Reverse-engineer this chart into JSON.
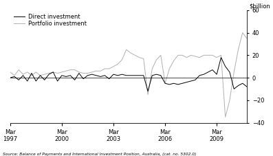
{
  "title": "",
  "ylabel": "$billion",
  "source_text": "Source: Balance of Payments and International Investment Position, Australia, (cat. no. 5302.0)",
  "ylim": [
    -40,
    60
  ],
  "yticks": [
    -40,
    -20,
    0,
    20,
    40,
    60
  ],
  "legend": [
    "Direct investment",
    "Portfolio investment"
  ],
  "line_colors": [
    "#000000",
    "#b0b0b0"
  ],
  "background_color": "#ffffff",
  "x_tick_positions": [
    0,
    12,
    24,
    36,
    48
  ],
  "x_tick_labels": [
    "Mar\n1997",
    "Mar\n2000",
    "Mar\n2003",
    "Mar\n2006",
    "Mar\n2009"
  ],
  "direct": [
    0,
    1,
    -2,
    2,
    -3,
    4,
    -3,
    2,
    -2,
    3,
    5,
    -3,
    2,
    1,
    2,
    -2,
    4,
    -1,
    2,
    3,
    2,
    1,
    2,
    -1,
    3,
    2,
    3,
    2,
    2,
    2,
    2,
    2,
    -12,
    2,
    3,
    2,
    -5,
    -6,
    -5,
    -6,
    -5,
    -4,
    -3,
    -2,
    2,
    3,
    5,
    7,
    3,
    18,
    10,
    5,
    -10,
    -7,
    -5,
    -8
  ],
  "portfolio": [
    5,
    2,
    7,
    3,
    5,
    2,
    5,
    2,
    3,
    4,
    5,
    4,
    5,
    6,
    7,
    7,
    5,
    4,
    4,
    5,
    6,
    6,
    8,
    8,
    10,
    12,
    16,
    25,
    22,
    20,
    18,
    17,
    -15,
    8,
    16,
    20,
    -5,
    8,
    15,
    20,
    20,
    18,
    20,
    19,
    18,
    20,
    20,
    20,
    18,
    20,
    -35,
    -20,
    5,
    25,
    40,
    35
  ]
}
